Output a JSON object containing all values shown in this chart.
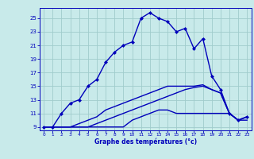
{
  "hours": [
    0,
    1,
    2,
    3,
    4,
    5,
    6,
    7,
    8,
    9,
    10,
    11,
    12,
    13,
    14,
    15,
    16,
    17,
    18,
    19,
    20,
    21,
    22,
    23
  ],
  "temp_main": [
    9,
    9,
    11,
    12.5,
    13,
    15,
    16,
    18.5,
    20,
    21,
    21.5,
    25,
    25.8,
    25,
    24.5,
    23,
    23.5,
    20.5,
    22,
    16.5,
    14.5,
    11,
    10,
    10.5
  ],
  "temp_min": [
    9,
    9,
    9,
    9,
    9,
    9,
    9,
    9,
    9,
    9,
    10,
    10.5,
    11,
    11.5,
    11.5,
    11,
    11,
    11,
    11,
    11,
    11,
    11,
    10,
    10
  ],
  "temp_avg": [
    9,
    9,
    9,
    9,
    9,
    9,
    9.5,
    10,
    10.5,
    11,
    11.5,
    12,
    12.5,
    13,
    13.5,
    14,
    14.5,
    14.8,
    15,
    14.5,
    14,
    11,
    10,
    10.5
  ],
  "temp_max": [
    9,
    9,
    9,
    9,
    9.5,
    10,
    10.5,
    11.5,
    12,
    12.5,
    13,
    13.5,
    14,
    14.5,
    15,
    15,
    15,
    15,
    15.2,
    14.5,
    14,
    11,
    10,
    10.5
  ],
  "line_color": "#0000bb",
  "bg_color": "#c8eaea",
  "grid_color": "#a0cccc",
  "xlabel": "Graphe des températures (°c)",
  "ylim": [
    8.5,
    26.5
  ],
  "xlim": [
    -0.5,
    23.5
  ],
  "yticks": [
    9,
    11,
    13,
    15,
    17,
    19,
    21,
    23,
    25
  ],
  "xticks": [
    0,
    1,
    2,
    3,
    4,
    5,
    6,
    7,
    8,
    9,
    10,
    11,
    12,
    13,
    14,
    15,
    16,
    17,
    18,
    19,
    20,
    21,
    22,
    23
  ],
  "marker": "D",
  "markersize": 2.5,
  "linewidth": 1.0
}
